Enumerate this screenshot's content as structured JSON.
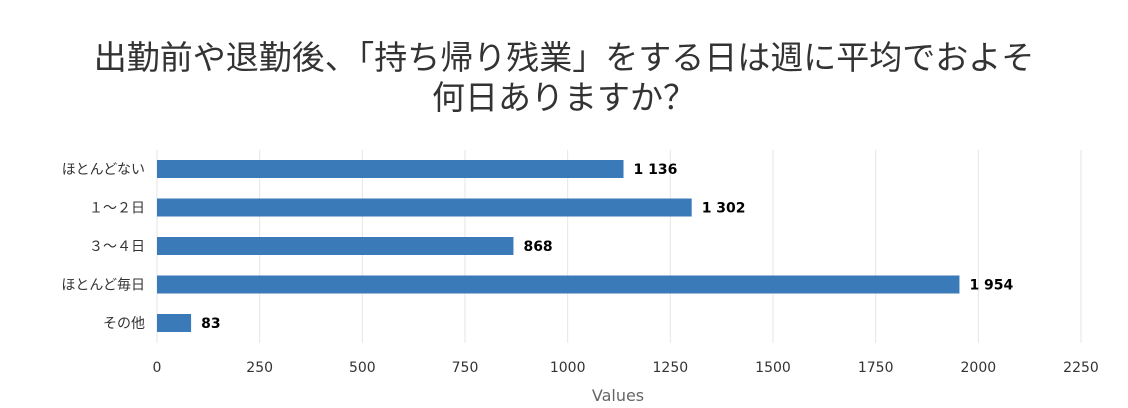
{
  "chart_data": {
    "type": "bar",
    "orientation": "horizontal",
    "title_lines": [
      "出勤前や退勤後、「持ち帰り残業」をする日は週に平均でおよそ",
      "何日ありますか？"
    ],
    "categories": [
      "ほとんどない",
      "１～２日",
      "３～４日",
      "ほとんど毎日",
      "その他"
    ],
    "values": [
      1136,
      1302,
      868,
      1954,
      83
    ],
    "value_labels": [
      "1 136",
      "1 302",
      "868",
      "1 954",
      "83"
    ],
    "x_ticks": [
      "0",
      "250",
      "500",
      "750",
      "1000",
      "1250",
      "1500",
      "1750",
      "2000",
      "2250"
    ],
    "xlim": [
      0,
      2250
    ],
    "xlabel": "Values",
    "ylabel": "",
    "grid": true,
    "legend": "none",
    "bar_color": "#3a7ab8",
    "grid_color": "#e6e6e6"
  }
}
